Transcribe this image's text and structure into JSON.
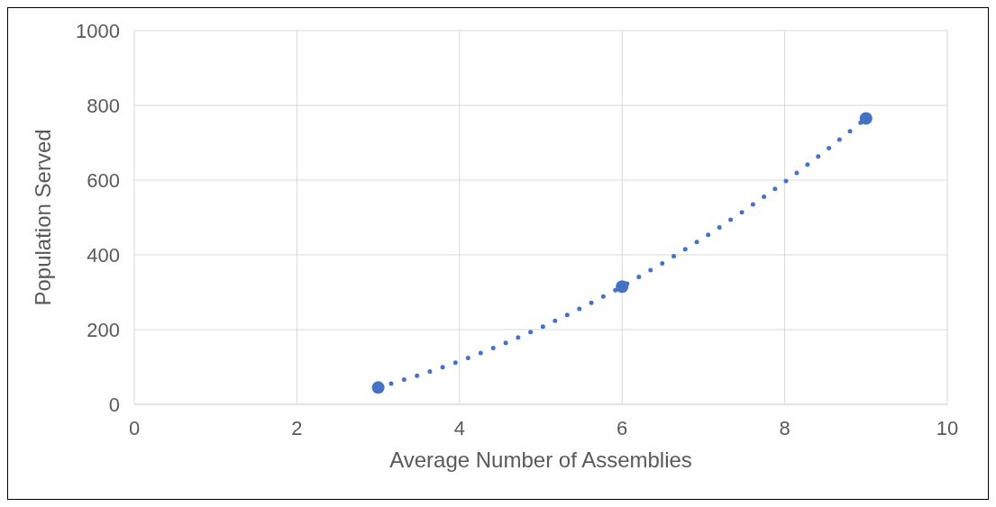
{
  "chart_data": {
    "type": "scatter",
    "xlabel": "Average Number of Assemblies",
    "ylabel": "Population Served",
    "xlim": [
      0,
      10
    ],
    "ylim": [
      0,
      1000
    ],
    "xticks": [
      0,
      2,
      4,
      6,
      8,
      10
    ],
    "yticks": [
      0,
      200,
      400,
      600,
      800,
      1000
    ],
    "grid": true,
    "series": [
      {
        "color": "#4472c4",
        "marker": "circle",
        "x": [
          3,
          6,
          9
        ],
        "values": [
          45,
          315,
          765
        ]
      },
      {
        "type": "line",
        "color": "#4472c4",
        "marker": "none",
        "line_style": "dotted",
        "x": [
          3,
          3.5,
          4,
          4.5,
          5,
          5.5,
          6,
          6.5,
          7,
          7.5,
          8,
          8.5,
          9
        ],
        "values": [
          45,
          78,
          115,
          158,
          205,
          258,
          315,
          378,
          445,
          518,
          595,
          678,
          765
        ]
      }
    ]
  }
}
